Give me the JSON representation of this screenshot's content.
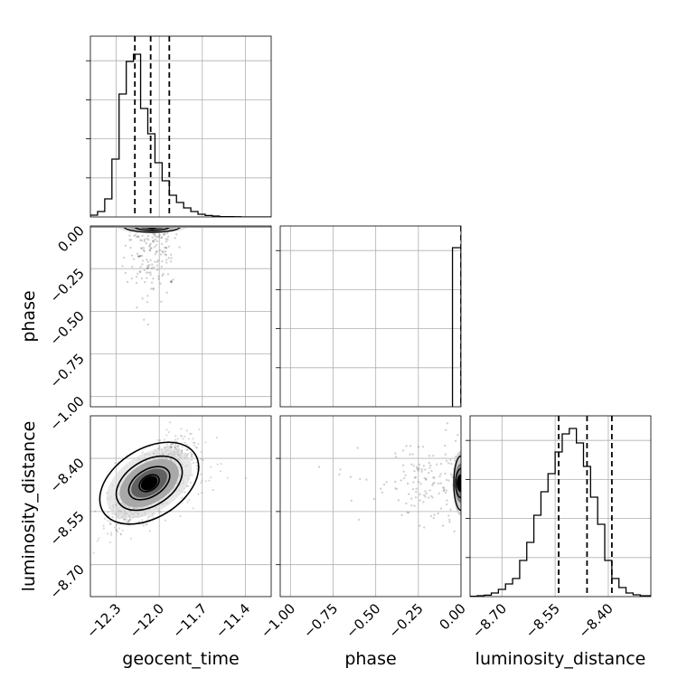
{
  "chart_data": {
    "type": "corner",
    "grid": true,
    "parameters": [
      {
        "name": "geocent_time",
        "ticks": [
          -12.3,
          -12.0,
          -11.7,
          -11.4
        ],
        "tick_labels": [
          "−12.3",
          "−12.0",
          "−11.7",
          "−11.4"
        ],
        "range": [
          -12.48,
          -11.22
        ],
        "quantiles": [
          -12.17,
          -12.06,
          -11.93
        ],
        "histogram": {
          "edges": [
            -12.48,
            -12.43,
            -12.38,
            -12.33,
            -12.28,
            -12.23,
            -12.18,
            -12.13,
            -12.08,
            -12.03,
            -11.98,
            -11.93,
            -11.88,
            -11.83,
            -11.78,
            -11.73,
            -11.68,
            -11.63,
            -11.58,
            -11.53,
            -11.48,
            -11.43,
            -11.38,
            -11.33,
            -11.28,
            -11.22
          ],
          "counts": [
            0.01,
            0.03,
            0.1,
            0.32,
            0.68,
            0.86,
            0.9,
            0.6,
            0.46,
            0.3,
            0.2,
            0.12,
            0.08,
            0.05,
            0.03,
            0.015,
            0.008,
            0.005,
            0.002,
            0.002,
            0.001,
            0.0,
            0.0,
            0.0,
            0.0
          ]
        }
      },
      {
        "name": "phase",
        "ticks": [
          -1.0,
          -0.75,
          -0.5,
          -0.25,
          0.0
        ],
        "tick_labels": [
          "−1.00",
          "−0.75",
          "−0.50",
          "−0.25",
          "0.00"
        ],
        "range": [
          -1.06,
          0.0
        ],
        "quantiles": [
          0.0
        ],
        "histogram": {
          "edges": [
            -0.05,
            0.0
          ],
          "counts": [
            0.88
          ]
        }
      },
      {
        "name": "luminosity_distance",
        "ticks": [
          -8.7,
          -8.55,
          -8.4
        ],
        "tick_labels": [
          "−8.70",
          "−8.55",
          "−8.40"
        ],
        "range": [
          -8.79,
          -8.28
        ],
        "quantiles": [
          -8.54,
          -8.46,
          -8.39
        ],
        "histogram": {
          "edges": [
            -8.79,
            -8.77,
            -8.75,
            -8.73,
            -8.71,
            -8.69,
            -8.67,
            -8.65,
            -8.63,
            -8.61,
            -8.59,
            -8.57,
            -8.55,
            -8.53,
            -8.51,
            -8.49,
            -8.47,
            -8.45,
            -8.43,
            -8.41,
            -8.39,
            -8.37,
            -8.35,
            -8.33,
            -8.31,
            -8.28
          ],
          "counts": [
            0.002,
            0.005,
            0.008,
            0.02,
            0.04,
            0.07,
            0.1,
            0.2,
            0.3,
            0.45,
            0.58,
            0.68,
            0.8,
            0.9,
            0.93,
            0.85,
            0.72,
            0.55,
            0.4,
            0.2,
            0.1,
            0.05,
            0.02,
            0.01,
            0.005
          ]
        }
      }
    ],
    "pair_plots": [
      {
        "x": "geocent_time",
        "y": "phase",
        "mode": "density_band",
        "center": [
          -12.05,
          0.0
        ],
        "contour_levels": 3
      },
      {
        "x": "geocent_time",
        "y": "luminosity_distance",
        "mode": "density_contours",
        "center": [
          -12.07,
          -8.47
        ],
        "contour_levels": 4,
        "correlation": "positive"
      },
      {
        "x": "phase",
        "y": "luminosity_distance",
        "mode": "density_band",
        "center": [
          0.0,
          -8.47
        ],
        "contour_levels": 2
      }
    ]
  }
}
